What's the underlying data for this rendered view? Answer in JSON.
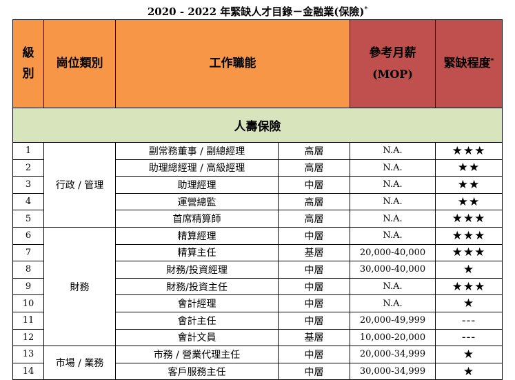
{
  "title": "2020 - 2022 年緊缺人才目錄－金融業(保險)",
  "title_mark": "*",
  "headers": {
    "level": "級別",
    "category": "崗位類別",
    "function": "工作職能",
    "salary_line1": "參考月薪",
    "salary_line2": "(MOP)",
    "scarcity": "緊缺程度",
    "scarcity_mark": "*"
  },
  "section": "人壽保險",
  "categories": {
    "admin": "行政 / 管理",
    "finance": "財務",
    "marketing": "市場 / 業務"
  },
  "rows": [
    {
      "no": "1",
      "job": "副常務董事 / 副總經理",
      "level": "高層",
      "salary": "N.A.",
      "stars": "★★★"
    },
    {
      "no": "2",
      "job": "助理總經理 / 高級經理",
      "level": "高層",
      "salary": "N.A.",
      "stars": "★★"
    },
    {
      "no": "3",
      "job": "助理經理",
      "level": "中層",
      "salary": "N.A.",
      "stars": "★★"
    },
    {
      "no": "4",
      "job": "運營總監",
      "level": "高層",
      "salary": "N.A.",
      "stars": "★★"
    },
    {
      "no": "5",
      "job": "首席精算師",
      "level": "高層",
      "salary": "N.A.",
      "stars": "★★★"
    },
    {
      "no": "6",
      "job": "精算經理",
      "level": "中層",
      "salary": "N.A.",
      "stars": "★★★"
    },
    {
      "no": "7",
      "job": "精算主任",
      "level": "基層",
      "salary": "20,000-40,000",
      "stars": "★★★"
    },
    {
      "no": "8",
      "job": "財務/投資經理",
      "level": "中層",
      "salary": "30,000-40,000",
      "stars": "★"
    },
    {
      "no": "9",
      "job": "財務/投資主任",
      "level": "中層",
      "salary": "N.A.",
      "stars": "★★★"
    },
    {
      "no": "10",
      "job": "會計經理",
      "level": "中層",
      "salary": "N.A.",
      "stars": "★"
    },
    {
      "no": "11",
      "job": "會計主任",
      "level": "中層",
      "salary": "20,000-49,999",
      "stars": "---"
    },
    {
      "no": "12",
      "job": "會計文員",
      "level": "基層",
      "salary": "10,000-20,000",
      "stars": "---"
    },
    {
      "no": "13",
      "job": "市務 / 營業代理主任",
      "level": "中層",
      "salary": "20,000-34,999",
      "stars": "★"
    },
    {
      "no": "14",
      "job": "客戶服務主任",
      "level": "中層",
      "salary": "30,000-34,999",
      "stars": "★"
    }
  ]
}
